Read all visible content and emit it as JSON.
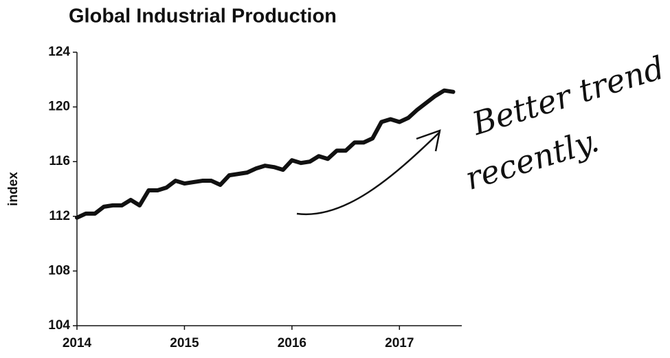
{
  "chart_data": {
    "type": "line",
    "title": "Global Industrial Production",
    "y_label": "index",
    "annotations": [
      "Better trend",
      "recently."
    ],
    "x": [
      2014.0,
      2014.083,
      2014.167,
      2014.25,
      2014.333,
      2014.417,
      2014.5,
      2014.583,
      2014.667,
      2014.75,
      2014.833,
      2014.917,
      2015.0,
      2015.083,
      2015.167,
      2015.25,
      2015.333,
      2015.417,
      2015.5,
      2015.583,
      2015.667,
      2015.75,
      2015.833,
      2015.917,
      2016.0,
      2016.083,
      2016.167,
      2016.25,
      2016.333,
      2016.417,
      2016.5,
      2016.583,
      2016.667,
      2016.75,
      2016.833,
      2016.917,
      2017.0,
      2017.083,
      2017.167,
      2017.25,
      2017.333,
      2017.417,
      2017.5
    ],
    "series": [
      {
        "name": "Global Industrial Production",
        "color": "#111111",
        "values": [
          111.9,
          112.2,
          112.2,
          112.7,
          112.8,
          112.8,
          113.2,
          112.8,
          113.9,
          113.9,
          114.1,
          114.6,
          114.4,
          114.5,
          114.6,
          114.6,
          114.3,
          115.0,
          115.1,
          115.2,
          115.5,
          115.7,
          115.6,
          115.4,
          116.1,
          115.9,
          116.0,
          116.4,
          116.2,
          116.8,
          116.8,
          117.4,
          117.4,
          117.7,
          118.9,
          119.1,
          118.9,
          119.2,
          119.8,
          120.3,
          120.8,
          121.2,
          121.1
        ]
      }
    ],
    "xlim": [
      2014,
      2017.58
    ],
    "xticks": [
      2014,
      2015,
      2016,
      2017
    ],
    "ylim": [
      104,
      124
    ],
    "yticks": [
      104,
      108,
      112,
      116,
      120,
      124
    ],
    "grid": false,
    "legend": false
  }
}
